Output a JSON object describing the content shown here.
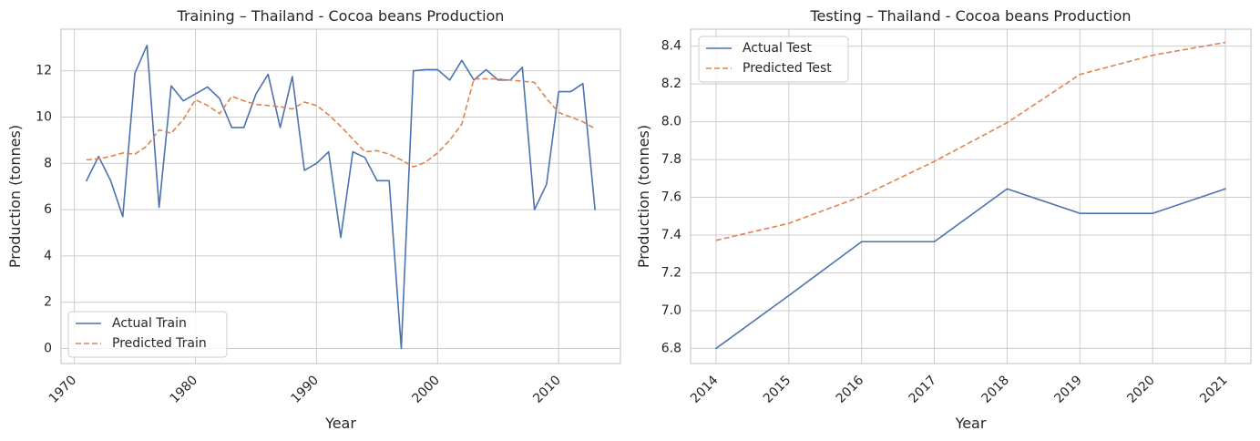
{
  "colors": {
    "actual": "#4c72b0",
    "predicted": "#dd8452",
    "grid": "#cccccc",
    "spine": "#cccccc",
    "text": "#262626"
  },
  "chart_data": [
    {
      "type": "line",
      "title": "Training – Thailand - Cocoa beans Production",
      "xlabel": "Year",
      "ylabel": "Production (tonnes)",
      "xlim": [
        1968.9,
        2015.1
      ],
      "ylim": [
        -0.65,
        13.8
      ],
      "xticks": [
        1970,
        1980,
        1990,
        2000,
        2010
      ],
      "xtick_labels": [
        "1970",
        "1980",
        "1990",
        "2000",
        "2010"
      ],
      "yticks": [
        0,
        2,
        4,
        6,
        8,
        10,
        12
      ],
      "ytick_labels": [
        "0",
        "2",
        "4",
        "6",
        "8",
        "10",
        "12"
      ],
      "legend_position": "lower-left",
      "x": [
        1971,
        1972,
        1973,
        1974,
        1975,
        1976,
        1977,
        1978,
        1979,
        1980,
        1981,
        1982,
        1983,
        1984,
        1985,
        1986,
        1987,
        1988,
        1989,
        1990,
        1991,
        1992,
        1993,
        1994,
        1995,
        1996,
        1997,
        1998,
        1999,
        2000,
        2001,
        2002,
        2003,
        2004,
        2005,
        2006,
        2007,
        2008,
        2009,
        2010,
        2011,
        2012,
        2013
      ],
      "series": [
        {
          "name": "Actual Train",
          "style": "solid",
          "values": [
            7.25,
            8.3,
            7.25,
            5.7,
            11.9,
            13.1,
            6.1,
            11.35,
            10.7,
            11.0,
            11.3,
            10.8,
            9.55,
            9.55,
            11.0,
            11.85,
            9.55,
            11.75,
            7.7,
            8.0,
            8.5,
            4.8,
            8.5,
            8.25,
            7.25,
            7.25,
            0.0,
            12.0,
            12.05,
            12.05,
            11.6,
            12.45,
            11.6,
            12.05,
            11.6,
            11.6,
            12.15,
            6.0,
            7.1,
            11.1,
            11.1,
            11.45,
            6.0
          ]
        },
        {
          "name": "Predicted Train",
          "style": "dashed",
          "values": [
            8.15,
            8.2,
            8.3,
            8.45,
            8.4,
            8.75,
            9.45,
            9.3,
            9.9,
            10.75,
            10.5,
            10.15,
            10.9,
            10.7,
            10.55,
            10.5,
            10.45,
            10.35,
            10.65,
            10.5,
            10.1,
            9.6,
            9.05,
            8.5,
            8.55,
            8.4,
            8.15,
            7.85,
            8.05,
            8.45,
            9.0,
            9.7,
            11.65,
            11.65,
            11.65,
            11.6,
            11.55,
            11.5,
            10.8,
            10.2,
            10.0,
            9.8,
            9.5
          ]
        }
      ]
    },
    {
      "type": "line",
      "title": "Testing – Thailand - Cocoa beans Production",
      "xlabel": "Year",
      "ylabel": "Production (tonnes)",
      "xlim": [
        2013.65,
        2021.35
      ],
      "ylim": [
        6.72,
        8.49
      ],
      "xticks": [
        2014,
        2015,
        2016,
        2017,
        2018,
        2019,
        2020,
        2021
      ],
      "xtick_labels": [
        "2014",
        "2015",
        "2016",
        "2017",
        "2018",
        "2019",
        "2020",
        "2021"
      ],
      "yticks": [
        6.8,
        7.0,
        7.2,
        7.4,
        7.6,
        7.8,
        8.0,
        8.2,
        8.4
      ],
      "ytick_labels": [
        "6.8",
        "7.0",
        "7.2",
        "7.4",
        "7.6",
        "7.8",
        "8.0",
        "8.2",
        "8.4"
      ],
      "legend_position": "top-left",
      "x": [
        2014,
        2015,
        2016,
        2017,
        2018,
        2019,
        2020,
        2021
      ],
      "series": [
        {
          "name": "Actual Test",
          "style": "solid",
          "values": [
            6.8,
            7.08,
            7.365,
            7.365,
            7.645,
            7.515,
            7.515,
            7.645
          ]
        },
        {
          "name": "Predicted Test",
          "style": "dashed",
          "values": [
            7.372,
            7.462,
            7.605,
            7.79,
            7.995,
            8.25,
            8.352,
            8.42
          ]
        }
      ]
    }
  ]
}
